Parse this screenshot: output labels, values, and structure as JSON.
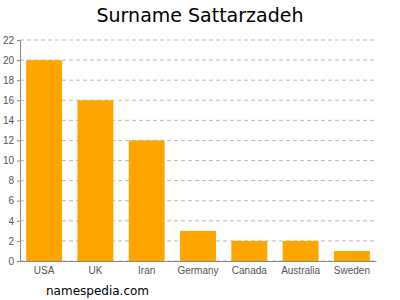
{
  "chart_data": {
    "type": "bar",
    "title": "Surname Sattarzadeh",
    "categories": [
      "USA",
      "UK",
      "Iran",
      "Germany",
      "Canada",
      "Australia",
      "Sweden"
    ],
    "values": [
      20,
      16,
      12,
      3,
      2,
      2,
      1
    ],
    "color": "#ffa500",
    "ylim": [
      0,
      22
    ],
    "yticks": [
      0,
      2,
      4,
      6,
      8,
      10,
      12,
      14,
      16,
      18,
      20,
      22
    ],
    "grid": true,
    "annotations": [
      "namespedia.com"
    ]
  }
}
